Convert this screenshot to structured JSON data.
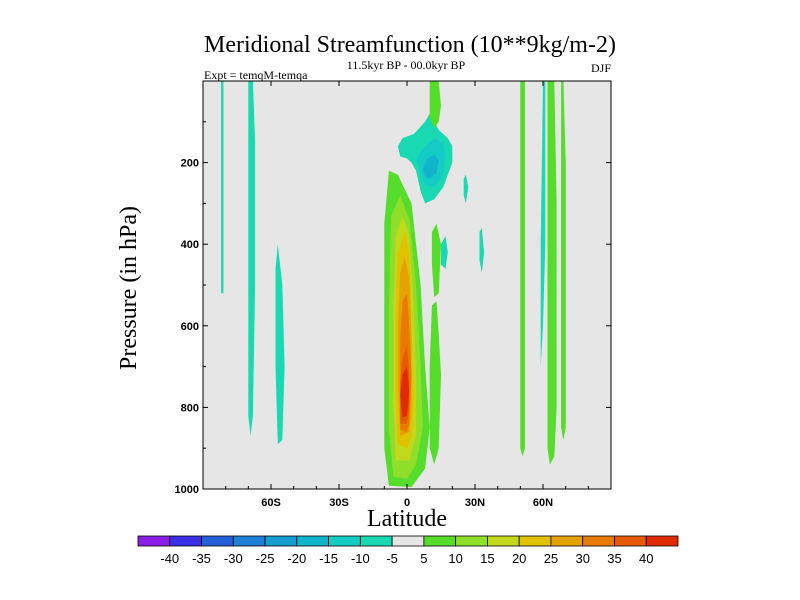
{
  "chart_data": {
    "type": "contour",
    "title": "Meridional Streamfunction (10**9kg/m-2)",
    "subtitle": "11.5kyr BP - 00.0kyr BP",
    "left_label": "Expt = temqM-temqa",
    "right_label": "DJF",
    "xlabel": "Latitude",
    "ylabel": "Pressure (in hPa)",
    "xlim": [
      -90,
      90
    ],
    "ylim": [
      1000,
      0
    ],
    "x_ticks": [
      -60,
      -30,
      0,
      30,
      60
    ],
    "x_tick_labels": [
      "60S",
      "30S",
      "0",
      "30N",
      "60N"
    ],
    "y_ticks": [
      200,
      400,
      600,
      800,
      1000
    ],
    "y_tick_labels": [
      "200",
      "400",
      "600",
      "800",
      "1000"
    ],
    "colorbar": {
      "labels": [
        "-40",
        "-35",
        "-30",
        "-25",
        "-20",
        "-15",
        "-10",
        "-5",
        "5",
        "10",
        "15",
        "20",
        "25",
        "30",
        "35",
        "40"
      ],
      "colors": [
        "#8a1ee6",
        "#3a2ee6",
        "#2360d8",
        "#1f7fd6",
        "#159cd0",
        "#12b4cc",
        "#14ccc4",
        "#19d9b2",
        "#e6e6e6",
        "#56dc2a",
        "#8fde2a",
        "#c2d81c",
        "#e0c200",
        "#e6a200",
        "#e87a00",
        "#e85a00",
        "#e02a00"
      ]
    },
    "background_color": "#e6e6e6",
    "contour_fields": [
      {
        "name": "tropical-positive-cell",
        "level": 5,
        "points": [
          [
            -8,
            992
          ],
          [
            -10,
            900
          ],
          [
            -10,
            600
          ],
          [
            -10,
            350
          ],
          [
            -8,
            220
          ],
          [
            -4,
            230
          ],
          [
            2,
            300
          ],
          [
            6,
            500
          ],
          [
            8,
            700
          ],
          [
            10,
            850
          ],
          [
            8,
            950
          ],
          [
            2,
            995
          ]
        ]
      },
      {
        "name": "tropical-positive-cell",
        "level": 10,
        "points": [
          [
            -6,
            970
          ],
          [
            -8,
            850
          ],
          [
            -8,
            550
          ],
          [
            -7,
            330
          ],
          [
            -3,
            280
          ],
          [
            1,
            340
          ],
          [
            4,
            500
          ],
          [
            6,
            700
          ],
          [
            7,
            850
          ],
          [
            4,
            940
          ],
          [
            0,
            975
          ]
        ]
      },
      {
        "name": "tropical-positive-cell",
        "level": 15,
        "points": [
          [
            -5,
            930
          ],
          [
            -6,
            800
          ],
          [
            -6,
            550
          ],
          [
            -5,
            380
          ],
          [
            -2,
            330
          ],
          [
            1,
            380
          ],
          [
            3,
            550
          ],
          [
            4,
            750
          ],
          [
            4,
            870
          ],
          [
            1,
            930
          ]
        ]
      },
      {
        "name": "tropical-positive-cell",
        "level": 20,
        "points": [
          [
            -4,
            890
          ],
          [
            -5,
            760
          ],
          [
            -5,
            560
          ],
          [
            -4,
            420
          ],
          [
            -1,
            370
          ],
          [
            1,
            420
          ],
          [
            2,
            600
          ],
          [
            3,
            780
          ],
          [
            2,
            870
          ],
          [
            0,
            900
          ]
        ]
      },
      {
        "name": "tropical-positive-cell",
        "level": 25,
        "points": [
          [
            -3,
            870
          ],
          [
            -4,
            750
          ],
          [
            -4,
            600
          ],
          [
            -3,
            470
          ],
          [
            -1,
            430
          ],
          [
            1,
            480
          ],
          [
            2,
            640
          ],
          [
            2,
            800
          ],
          [
            1,
            860
          ]
        ]
      },
      {
        "name": "tropical-positive-cell",
        "level": 30,
        "points": [
          [
            -3,
            855
          ],
          [
            -3,
            740
          ],
          [
            -3,
            630
          ],
          [
            -2,
            540
          ],
          [
            0,
            520
          ],
          [
            1,
            600
          ],
          [
            2,
            720
          ],
          [
            1,
            840
          ],
          [
            0,
            860
          ]
        ]
      },
      {
        "name": "tropical-positive-cell",
        "level": 35,
        "points": [
          [
            -3,
            840
          ],
          [
            -3,
            740
          ],
          [
            -2,
            680
          ],
          [
            0,
            650
          ],
          [
            1,
            720
          ],
          [
            1,
            800
          ],
          [
            0,
            840
          ]
        ]
      },
      {
        "name": "tropical-positive-cell",
        "level": 40,
        "points": [
          [
            -2,
            825
          ],
          [
            -3,
            770
          ],
          [
            -2,
            720
          ],
          [
            0,
            700
          ],
          [
            1,
            760
          ],
          [
            0,
            820
          ]
        ]
      },
      {
        "name": "upper-negative-cell",
        "level": -5,
        "points": [
          [
            -4,
            160
          ],
          [
            -2,
            140
          ],
          [
            3,
            130
          ],
          [
            8,
            100
          ],
          [
            10,
            80
          ],
          [
            12,
            100
          ],
          [
            14,
            120
          ],
          [
            18,
            140
          ],
          [
            20,
            160
          ],
          [
            20,
            200
          ],
          [
            18,
            230
          ],
          [
            16,
            260
          ],
          [
            12,
            290
          ],
          [
            8,
            300
          ],
          [
            6,
            270
          ],
          [
            4,
            220
          ],
          [
            2,
            200
          ],
          [
            0,
            190
          ],
          [
            -3,
            185
          ]
        ]
      },
      {
        "name": "upper-negative-cell",
        "level": -10,
        "points": [
          [
            4,
            190
          ],
          [
            8,
            160
          ],
          [
            12,
            140
          ],
          [
            16,
            150
          ],
          [
            17,
            190
          ],
          [
            16,
            230
          ],
          [
            12,
            260
          ],
          [
            8,
            255
          ],
          [
            6,
            225
          ]
        ]
      },
      {
        "name": "upper-negative-cell",
        "level": -15,
        "points": [
          [
            7,
            215
          ],
          [
            9,
            190
          ],
          [
            12,
            180
          ],
          [
            14,
            195
          ],
          [
            13,
            225
          ],
          [
            10,
            240
          ],
          [
            8,
            235
          ]
        ]
      },
      {
        "name": "upper-positive-cell",
        "level": 5,
        "points": [
          [
            10,
            0
          ],
          [
            14,
            0
          ],
          [
            15,
            60
          ],
          [
            14,
            100
          ],
          [
            12,
            115
          ],
          [
            10,
            90
          ]
        ]
      },
      {
        "name": "upper-positive-cell",
        "level": 5,
        "points": [
          [
            11,
            370
          ],
          [
            13,
            350
          ],
          [
            15,
            400
          ],
          [
            14,
            520
          ],
          [
            12,
            530
          ],
          [
            11,
            450
          ]
        ]
      },
      {
        "name": "upper-positive-cell",
        "level": 5,
        "points": [
          [
            11,
            550
          ],
          [
            13,
            540
          ],
          [
            14,
            620
          ],
          [
            15,
            720
          ],
          [
            14,
            900
          ],
          [
            12,
            940
          ],
          [
            10,
            900
          ],
          [
            10,
            700
          ]
        ]
      },
      {
        "name": "upper-negative-cell",
        "level": -5,
        "points": [
          [
            15,
            400
          ],
          [
            17,
            380
          ],
          [
            18,
            420
          ],
          [
            17,
            460
          ],
          [
            15,
            450
          ]
        ]
      },
      {
        "name": "upper-negative-cell",
        "level": -5,
        "points": [
          [
            25,
            240
          ],
          [
            26,
            230
          ],
          [
            27,
            260
          ],
          [
            26,
            300
          ],
          [
            25,
            280
          ]
        ]
      },
      {
        "name": "upper-negative-cell",
        "level": -5,
        "points": [
          [
            32,
            370
          ],
          [
            33,
            360
          ],
          [
            34,
            420
          ],
          [
            33,
            470
          ],
          [
            32,
            440
          ]
        ]
      },
      {
        "name": "southern-negative-column",
        "level": -5,
        "points": [
          [
            -82,
            0
          ],
          [
            -81,
            0
          ],
          [
            -81,
            300
          ],
          [
            -81,
            520
          ],
          [
            -82,
            520
          ],
          [
            -82,
            300
          ]
        ]
      },
      {
        "name": "southern-negative-column",
        "level": -5,
        "points": [
          [
            -70,
            0
          ],
          [
            -68,
            0
          ],
          [
            -67,
            150
          ],
          [
            -67,
            500
          ],
          [
            -68,
            820
          ],
          [
            -69,
            870
          ],
          [
            -70,
            820
          ],
          [
            -70,
            500
          ],
          [
            -70,
            150
          ]
        ]
      },
      {
        "name": "southern-negative-column",
        "level": -5,
        "points": [
          [
            -58,
            460
          ],
          [
            -57,
            400
          ],
          [
            -55,
            500
          ],
          [
            -54,
            700
          ],
          [
            -55,
            880
          ],
          [
            -57,
            890
          ],
          [
            -58,
            700
          ]
        ]
      },
      {
        "name": "northern-positive-column",
        "level": 5,
        "points": [
          [
            50,
            0
          ],
          [
            52,
            0
          ],
          [
            52,
            300
          ],
          [
            52,
            900
          ],
          [
            51,
            920
          ],
          [
            50,
            900
          ],
          [
            50,
            300
          ]
        ]
      },
      {
        "name": "northern-negative-column",
        "level": -5,
        "points": [
          [
            60,
            0
          ],
          [
            61,
            0
          ],
          [
            61,
            400
          ],
          [
            60,
            600
          ],
          [
            59,
            700
          ],
          [
            59,
            400
          ]
        ]
      },
      {
        "name": "northern-positive-column",
        "level": 5,
        "points": [
          [
            62,
            0
          ],
          [
            65,
            0
          ],
          [
            66,
            300
          ],
          [
            66,
            800
          ],
          [
            65,
            920
          ],
          [
            63,
            940
          ],
          [
            62,
            900
          ],
          [
            62,
            300
          ]
        ]
      },
      {
        "name": "northern-positive-column",
        "level": 5,
        "points": [
          [
            68,
            0
          ],
          [
            69,
            0
          ],
          [
            70,
            200
          ],
          [
            70,
            850
          ],
          [
            69,
            880
          ],
          [
            68,
            850
          ],
          [
            68,
            200
          ]
        ]
      }
    ]
  }
}
